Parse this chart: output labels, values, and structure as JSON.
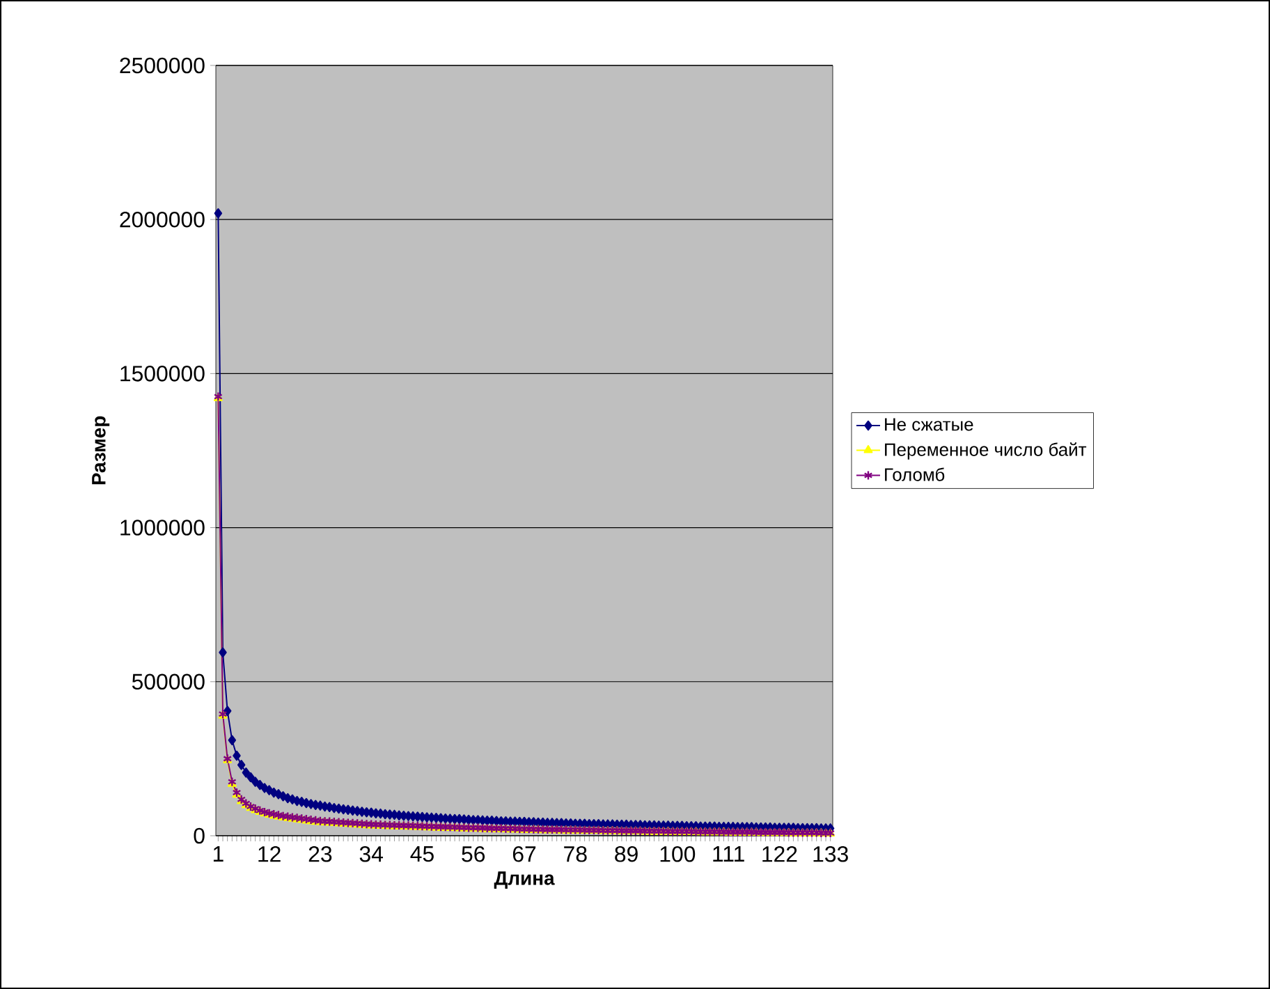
{
  "chart_data": {
    "type": "line",
    "xlabel": "Длина",
    "ylabel": "Размер",
    "categories": [
      "1",
      null,
      null,
      null,
      null,
      null,
      null,
      null,
      null,
      null,
      null,
      "12",
      null,
      null,
      null,
      null,
      null,
      null,
      null,
      null,
      null,
      null,
      "23",
      null,
      null,
      null,
      null,
      null,
      null,
      null,
      null,
      null,
      null,
      "34",
      null,
      null,
      null,
      null,
      null,
      null,
      null,
      null,
      null,
      null,
      "45",
      null,
      null,
      null,
      null,
      null,
      null,
      null,
      null,
      null,
      null,
      "56",
      null,
      null,
      null,
      null,
      null,
      null,
      null,
      null,
      null,
      null,
      "67",
      null,
      null,
      null,
      null,
      null,
      null,
      null,
      null,
      null,
      null,
      "78",
      null,
      null,
      null,
      null,
      null,
      null,
      null,
      null,
      null,
      null,
      "89",
      null,
      null,
      null,
      null,
      null,
      null,
      null,
      null,
      null,
      null,
      "100",
      null,
      null,
      null,
      null,
      null,
      null,
      null,
      null,
      null,
      null,
      "111",
      null,
      null,
      null,
      null,
      null,
      null,
      null,
      null,
      null,
      null,
      "122",
      null,
      null,
      null,
      null,
      null,
      null,
      null,
      null,
      null,
      null,
      "133"
    ],
    "series": [
      {
        "name": "Не сжатые",
        "color": "#000080",
        "marker": "diamond",
        "values": [
          2020000,
          595000,
          405000,
          310000,
          260000,
          230000,
          205000,
          190000,
          175000,
          165000,
          155000,
          148000,
          140000,
          135000,
          128000,
          122000,
          118000,
          113000,
          110000,
          106000,
          103000,
          100000,
          98000,
          95000,
          93000,
          90000,
          88000,
          86000,
          84000,
          82000,
          80000,
          78000,
          76000,
          75000,
          73000,
          72000,
          70000,
          69000,
          68000,
          66000,
          65000,
          64000,
          63000,
          62000,
          61000,
          60000,
          59000,
          58000,
          57000,
          56000,
          55000,
          54000,
          54000,
          53000,
          52000,
          51000,
          51000,
          50000,
          49000,
          49000,
          48000,
          47000,
          47000,
          46000,
          46000,
          45000,
          45000,
          44000,
          44000,
          43000,
          43000,
          42000,
          42000,
          41000,
          41000,
          40000,
          40000,
          39000,
          39000,
          39000,
          38000,
          38000,
          38000,
          37000,
          37000,
          37000,
          36000,
          36000,
          36000,
          35000,
          35000,
          35000,
          34000,
          34000,
          34000,
          33000,
          33000,
          33000,
          32000,
          32000,
          32000,
          31000,
          31000,
          31000,
          30000,
          30000,
          30000,
          30000,
          29000,
          29000,
          29000,
          29000,
          28000,
          28000,
          28000,
          28000,
          27000,
          27000,
          27000,
          27000,
          26000,
          26000,
          26000,
          26000,
          26000,
          25000,
          25000,
          25000,
          25000,
          25000,
          24000,
          24000,
          24000
        ]
      },
      {
        "name": "Переменное число байт",
        "color": "#ffff00",
        "marker": "triangle",
        "values": [
          1420000,
          390000,
          245000,
          168000,
          133000,
          112000,
          99000,
          90000,
          83000,
          77000,
          72000,
          68000,
          65000,
          62000,
          59000,
          57000,
          55000,
          53000,
          51000,
          49000,
          47000,
          45000,
          44000,
          43000,
          42000,
          41000,
          40000,
          39000,
          38000,
          37000,
          36000,
          35000,
          34000,
          33000,
          33000,
          32000,
          32000,
          31000,
          31000,
          30000,
          30000,
          29000,
          29000,
          28000,
          28000,
          27000,
          27000,
          26000,
          26000,
          25000,
          25000,
          25000,
          24000,
          24000,
          23000,
          23000,
          23000,
          22000,
          22000,
          22000,
          21000,
          21000,
          21000,
          20000,
          20000,
          20000,
          19000,
          19000,
          19000,
          19000,
          18000,
          18000,
          18000,
          18000,
          17000,
          17000,
          17000,
          17000,
          16000,
          16000,
          16000,
          16000,
          16000,
          15000,
          15000,
          15000,
          15000,
          14000,
          14000,
          14000,
          14000,
          14000,
          13000,
          13000,
          13000,
          13000,
          13000,
          13000,
          12000,
          12000,
          12000,
          12000,
          12000,
          12000,
          11000,
          11000,
          11000,
          11000,
          11000,
          11000,
          10000,
          10000,
          10000,
          10000,
          10000,
          10000,
          10000,
          9000,
          9000,
          9000,
          9000,
          9000,
          9000,
          9000,
          8000,
          8000,
          8000,
          8000,
          8000,
          8000,
          8000,
          7000,
          7000
        ]
      },
      {
        "name": "Голомб",
        "color": "#800080",
        "marker": "cross",
        "values": [
          1425000,
          395000,
          250000,
          175000,
          140000,
          118000,
          105000,
          95000,
          88000,
          82000,
          77000,
          73000,
          70000,
          67000,
          64000,
          62000,
          60000,
          58000,
          56000,
          54000,
          52000,
          50000,
          48000,
          47000,
          46000,
          45000,
          44000,
          43000,
          42000,
          41000,
          40000,
          39000,
          38000,
          37000,
          36000,
          36000,
          35000,
          35000,
          34000,
          34000,
          33000,
          33000,
          32000,
          32000,
          31000,
          31000,
          30000,
          30000,
          29000,
          29000,
          28000,
          28000,
          27000,
          27000,
          26000,
          26000,
          26000,
          25000,
          25000,
          24000,
          24000,
          24000,
          23000,
          23000,
          23000,
          22000,
          22000,
          22000,
          21000,
          21000,
          21000,
          20000,
          20000,
          20000,
          20000,
          19000,
          19000,
          19000,
          19000,
          18000,
          18000,
          18000,
          18000,
          17000,
          17000,
          17000,
          17000,
          16000,
          16000,
          16000,
          16000,
          16000,
          15000,
          15000,
          15000,
          15000,
          15000,
          14000,
          14000,
          14000,
          14000,
          14000,
          14000,
          13000,
          13000,
          13000,
          13000,
          13000,
          13000,
          12000,
          12000,
          12000,
          12000,
          12000,
          12000,
          12000,
          11000,
          11000,
          11000,
          11000,
          11000,
          11000,
          11000,
          10000,
          10000,
          10000,
          10000,
          10000,
          10000,
          10000,
          9000,
          9000,
          9000
        ]
      }
    ],
    "ylim": [
      0,
      2500000
    ],
    "yticks": [
      0,
      500000,
      1000000,
      1500000,
      2000000,
      2500000
    ],
    "grid": "y",
    "legend": "right",
    "line_style": "solid"
  }
}
